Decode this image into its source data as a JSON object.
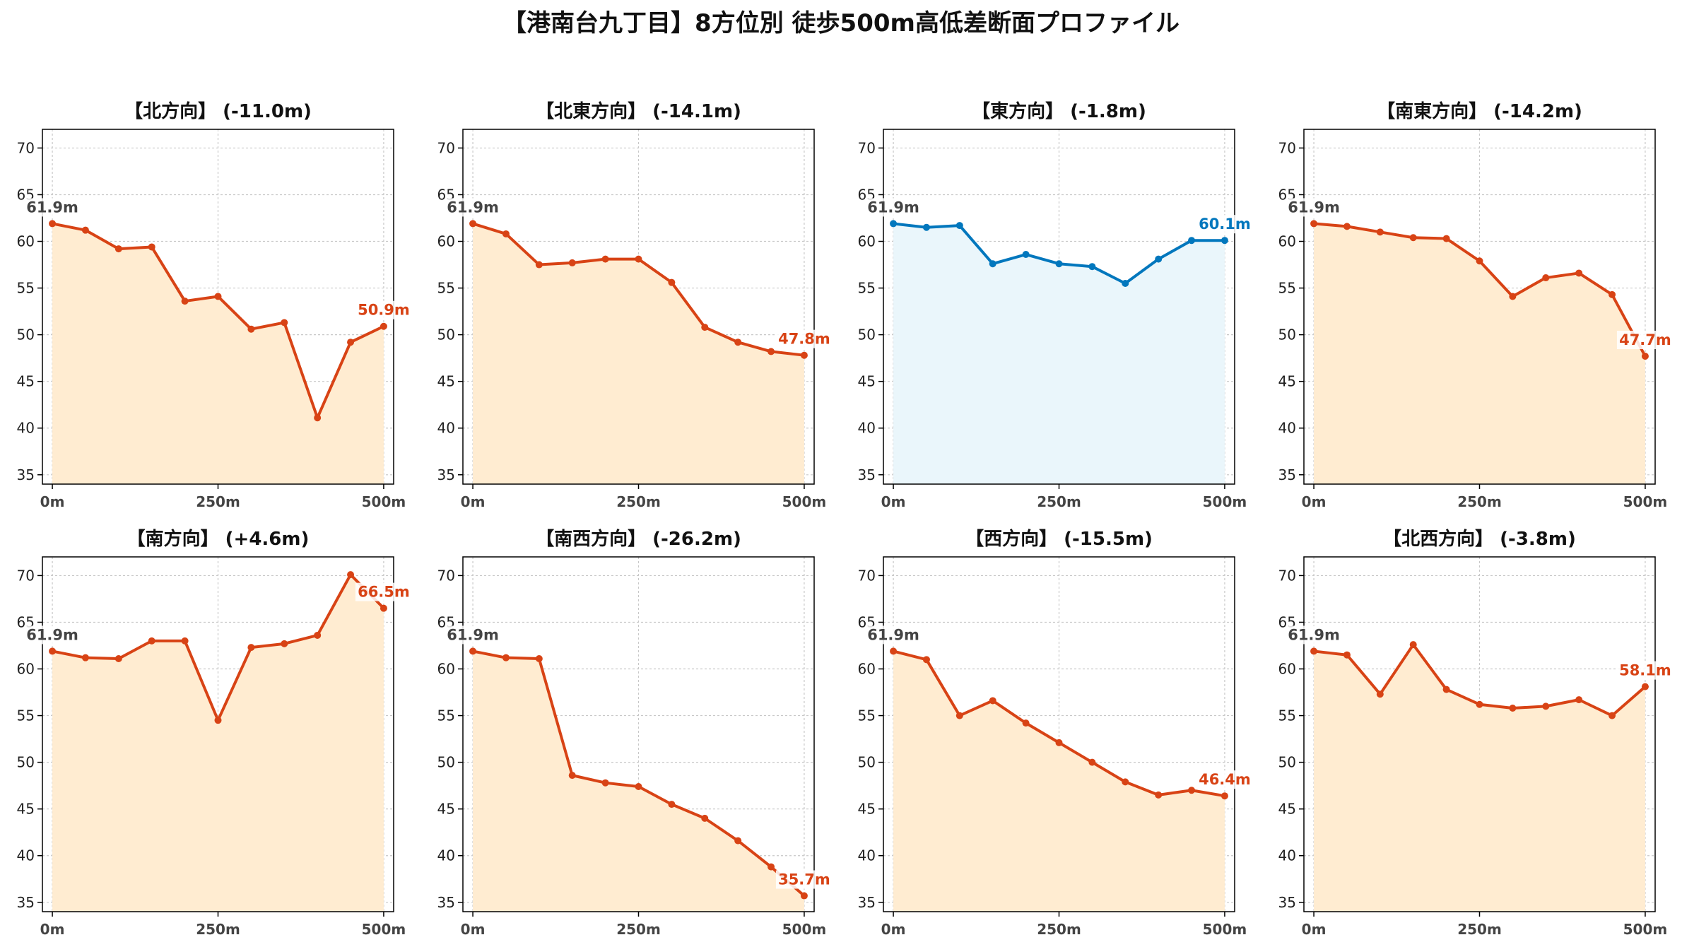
{
  "chart_data": {
    "type": "line",
    "title": "【港南台九丁目】8方位別 徒歩500m高低差断面プロファイル",
    "x": [
      0,
      50,
      100,
      150,
      200,
      250,
      300,
      350,
      400,
      450,
      500
    ],
    "xticks": [
      0,
      250,
      500
    ],
    "xtick_labels": [
      "0m",
      "250m",
      "500m"
    ],
    "xlim": [
      -15,
      515
    ],
    "ylim": [
      34,
      72
    ],
    "yticks": [
      35,
      40,
      45,
      50,
      55,
      60,
      65,
      70
    ],
    "ytick_labels": [
      "35",
      "40",
      "45",
      "50",
      "55",
      "60",
      "65",
      "70"
    ],
    "grid": true,
    "colors": {
      "down_line": "#d84315",
      "down_fill": "#ffecd1",
      "flat_line": "#0277bd",
      "flat_fill": "#eaf6fb",
      "start_label": "#444444"
    },
    "panels": [
      {
        "title": "【北方向】 (-11.0m)",
        "style": "down",
        "values": [
          61.9,
          61.2,
          59.2,
          59.4,
          53.6,
          54.1,
          50.6,
          51.3,
          41.1,
          49.2,
          50.9
        ],
        "start_label": "61.9m",
        "end_label": "50.9m"
      },
      {
        "title": "【北東方向】 (-14.1m)",
        "style": "down",
        "values": [
          61.9,
          60.8,
          57.5,
          57.7,
          58.1,
          58.1,
          55.6,
          50.8,
          49.2,
          48.2,
          47.8
        ],
        "start_label": "61.9m",
        "end_label": "47.8m"
      },
      {
        "title": "【東方向】 (-1.8m)",
        "style": "flat",
        "values": [
          61.9,
          61.5,
          61.7,
          57.6,
          58.6,
          57.6,
          57.3,
          55.5,
          58.1,
          60.1,
          60.1
        ],
        "start_label": "61.9m",
        "end_label": "60.1m"
      },
      {
        "title": "【南東方向】 (-14.2m)",
        "style": "down",
        "values": [
          61.9,
          61.6,
          61.0,
          60.4,
          60.3,
          57.9,
          54.1,
          56.1,
          56.6,
          54.3,
          47.7
        ],
        "start_label": "61.9m",
        "end_label": "47.7m"
      },
      {
        "title": "【南方向】 (+4.6m)",
        "style": "down",
        "values": [
          61.9,
          61.2,
          61.1,
          63.0,
          63.0,
          54.5,
          62.3,
          62.7,
          63.6,
          70.1,
          66.5
        ],
        "start_label": "61.9m",
        "end_label": "66.5m"
      },
      {
        "title": "【南西方向】 (-26.2m)",
        "style": "down",
        "values": [
          61.9,
          61.2,
          61.1,
          48.6,
          47.8,
          47.4,
          45.5,
          44.0,
          41.6,
          38.8,
          35.7
        ],
        "start_label": "61.9m",
        "end_label": "35.7m"
      },
      {
        "title": "【西方向】 (-15.5m)",
        "style": "down",
        "values": [
          61.9,
          61.0,
          55.0,
          56.6,
          54.2,
          52.1,
          50.0,
          47.9,
          46.5,
          47.0,
          46.4
        ],
        "start_label": "61.9m",
        "end_label": "46.4m"
      },
      {
        "title": "【北西方向】 (-3.8m)",
        "style": "down",
        "values": [
          61.9,
          61.5,
          57.3,
          62.6,
          57.8,
          56.2,
          55.8,
          56.0,
          56.7,
          55.0,
          58.1
        ],
        "start_label": "61.9m",
        "end_label": "58.1m"
      }
    ]
  }
}
